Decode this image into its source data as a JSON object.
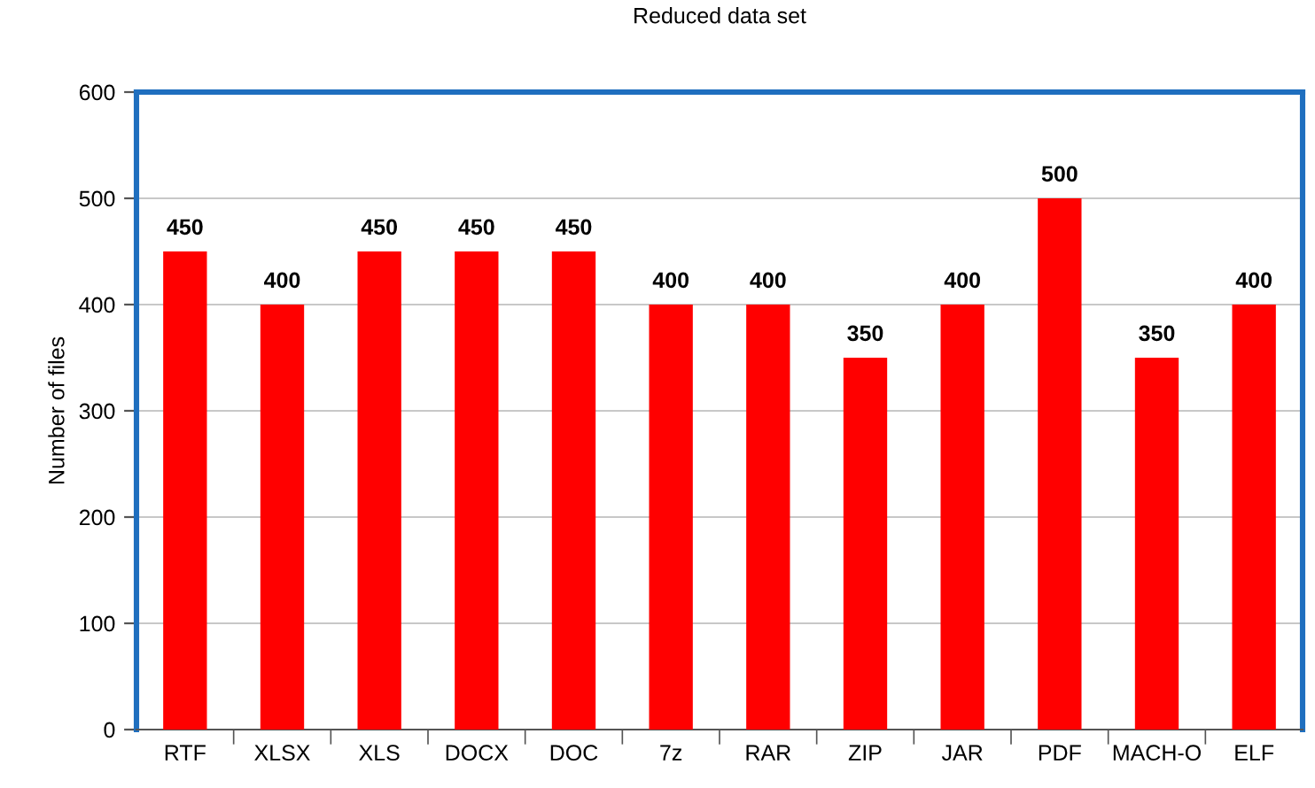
{
  "chart_data": {
    "type": "bar",
    "title": "Reduced data set",
    "ylabel": "Number of files",
    "categories": [
      "RTF",
      "XLSX",
      "XLS",
      "DOCX",
      "DOC",
      "7z",
      "RAR",
      "ZIP",
      "JAR",
      "PDF",
      "MACH-O",
      "ELF"
    ],
    "values": [
      450,
      400,
      450,
      450,
      450,
      400,
      400,
      350,
      400,
      500,
      350,
      400
    ],
    "color": "#ff0000",
    "ylim": [
      0,
      600
    ],
    "yticks": [
      0,
      100,
      200,
      300,
      400,
      500,
      600
    ],
    "grid": "y",
    "data_labels": true
  }
}
